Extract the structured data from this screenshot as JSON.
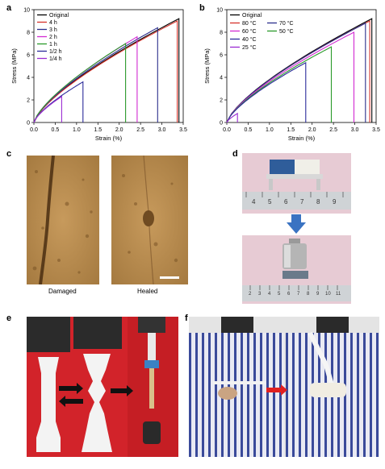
{
  "panels": {
    "a": "a",
    "b": "b",
    "c": "c",
    "d": "d",
    "e": "e",
    "f": "f"
  },
  "chart_data": [
    {
      "type": "line",
      "panel": "a",
      "xlabel": "Strain (%)",
      "ylabel": "Stress (MPa)",
      "xlim": [
        0,
        3.5
      ],
      "ylim": [
        0,
        10
      ],
      "xticks": [
        "0.0",
        "0.5",
        "1.0",
        "1.5",
        "2.0",
        "2.5",
        "3.0",
        "3.5"
      ],
      "yticks": [
        "0",
        "2",
        "4",
        "6",
        "8",
        "10"
      ],
      "legend_position": "top-left",
      "series": [
        {
          "name": "Original",
          "color": "#000000",
          "break_strain": 3.4,
          "peak_stress": 9.2
        },
        {
          "name": "4 h",
          "color": "#d6322a",
          "break_strain": 3.36,
          "peak_stress": 9.0
        },
        {
          "name": "3 h",
          "color": "#2a2e8c",
          "break_strain": 2.9,
          "peak_stress": 8.4
        },
        {
          "name": "2 h",
          "color": "#d22ad2",
          "break_strain": 2.42,
          "peak_stress": 7.6
        },
        {
          "name": "1 h",
          "color": "#2a9a2a",
          "break_strain": 2.15,
          "peak_stress": 7.0
        },
        {
          "name": "1/2 h",
          "color": "#2a2a9a",
          "break_strain": 1.15,
          "peak_stress": 3.6
        },
        {
          "name": "1/4 h",
          "color": "#9a2ad2",
          "break_strain": 0.65,
          "peak_stress": 2.3
        }
      ]
    },
    {
      "type": "line",
      "panel": "b",
      "xlabel": "Strain (%)",
      "ylabel": "Stress (MPa)",
      "xlim": [
        0,
        3.5
      ],
      "ylim": [
        0,
        10
      ],
      "xticks": [
        "0.0",
        "0.5",
        "1.0",
        "1.5",
        "2.0",
        "2.5",
        "3.0",
        "3.5"
      ],
      "yticks": [
        "0",
        "2",
        "4",
        "6",
        "8",
        "10"
      ],
      "legend_position": "top-left",
      "series": [
        {
          "name": "Original",
          "color": "#000000",
          "break_strain": 3.4,
          "peak_stress": 9.2
        },
        {
          "name": "80 °C",
          "color": "#d6322a",
          "break_strain": 3.35,
          "peak_stress": 9.0
        },
        {
          "name": "70 °C",
          "color": "#2a2e8c",
          "break_strain": 3.25,
          "peak_stress": 8.8
        },
        {
          "name": "60 °C",
          "color": "#d22ad2",
          "break_strain": 2.98,
          "peak_stress": 8.0
        },
        {
          "name": "50 °C",
          "color": "#2a9a2a",
          "break_strain": 2.45,
          "peak_stress": 6.7
        },
        {
          "name": "40 °C",
          "color": "#2a2a9a",
          "break_strain": 1.85,
          "peak_stress": 5.3
        },
        {
          "name": "25 °C",
          "color": "#9a2ad2",
          "break_strain": 0.25,
          "peak_stress": 0.8
        }
      ]
    }
  ],
  "captions": {
    "damaged": "Damaged",
    "healed": "Healed"
  },
  "ruler_top": [
    "4",
    "5",
    "6",
    "7",
    "8",
    "9"
  ],
  "ruler_bottom": [
    "2",
    "3",
    "4",
    "5",
    "6",
    "7",
    "8",
    "9",
    "10",
    "11"
  ]
}
